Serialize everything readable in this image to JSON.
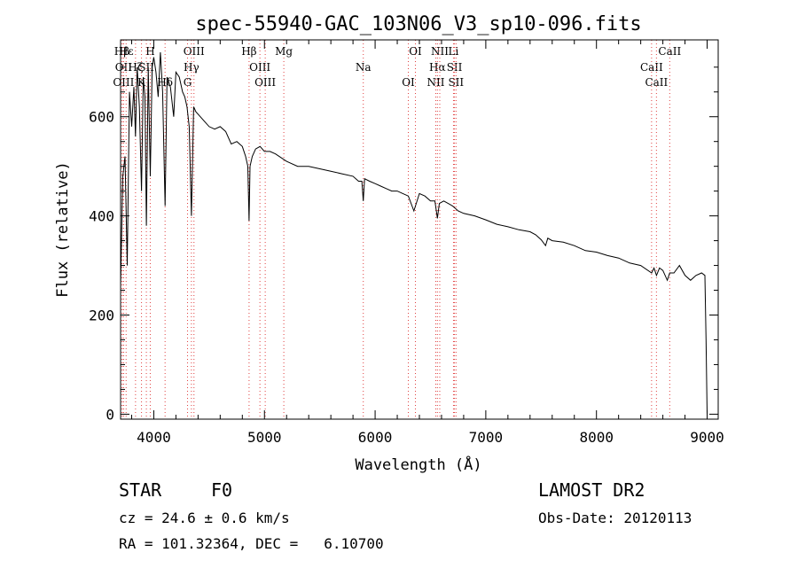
{
  "chart_data": {
    "type": "line",
    "title": "spec-55940-GAC_103N06_V3_sp10-096.fits",
    "xlabel": "Wavelength (Å)",
    "ylabel": "Flux (relative)",
    "xlim": [
      3700,
      9100
    ],
    "ylim": [
      -10,
      755
    ],
    "x_ticks": [
      4000,
      5000,
      6000,
      7000,
      8000,
      9000
    ],
    "y_ticks": [
      0,
      200,
      400,
      600
    ],
    "grid": false,
    "series": [
      {
        "x": [
          3700,
          3720,
          3740,
          3760,
          3780,
          3800,
          3820,
          3835,
          3850,
          3870,
          3889,
          3905,
          3920,
          3933,
          3950,
          3968,
          3985,
          4000,
          4020,
          4040,
          4060,
          4080,
          4102,
          4120,
          4150,
          4180,
          4200,
          4230,
          4260,
          4280,
          4300,
          4320,
          4340,
          4360,
          4380,
          4420,
          4460,
          4500,
          4550,
          4600,
          4650,
          4700,
          4750,
          4800,
          4830,
          4850,
          4861,
          4870,
          4890,
          4920,
          4960,
          5000,
          5050,
          5100,
          5200,
          5300,
          5400,
          5500,
          5600,
          5700,
          5800,
          5850,
          5880,
          5893,
          5905,
          5950,
          6000,
          6050,
          6100,
          6150,
          6200,
          6250,
          6300,
          6350,
          6400,
          6450,
          6500,
          6540,
          6563,
          6580,
          6620,
          6700,
          6750,
          6800,
          6900,
          7000,
          7100,
          7200,
          7300,
          7400,
          7450,
          7500,
          7540,
          7560,
          7600,
          7700,
          7800,
          7900,
          8000,
          8100,
          8200,
          8300,
          8400,
          8498,
          8520,
          8542,
          8570,
          8600,
          8640,
          8662,
          8700,
          8750,
          8800,
          8850,
          8900,
          8950,
          8980,
          8990,
          9000
        ],
        "values": [
          260,
          480,
          520,
          300,
          650,
          580,
          660,
          560,
          700,
          620,
          450,
          680,
          640,
          380,
          700,
          480,
          700,
          720,
          690,
          640,
          730,
          650,
          420,
          680,
          660,
          600,
          690,
          680,
          650,
          640,
          620,
          580,
          400,
          620,
          610,
          600,
          590,
          580,
          575,
          580,
          570,
          545,
          550,
          540,
          520,
          500,
          390,
          500,
          520,
          535,
          540,
          530,
          530,
          525,
          510,
          500,
          500,
          495,
          490,
          485,
          480,
          470,
          470,
          430,
          475,
          470,
          465,
          460,
          455,
          450,
          450,
          445,
          440,
          410,
          445,
          440,
          430,
          430,
          395,
          425,
          430,
          420,
          410,
          405,
          400,
          392,
          383,
          378,
          372,
          368,
          362,
          352,
          340,
          355,
          350,
          347,
          340,
          330,
          327,
          320,
          315,
          305,
          300,
          285,
          295,
          280,
          295,
          290,
          270,
          285,
          285,
          300,
          280,
          270,
          280,
          285,
          280,
          150,
          0
        ]
      }
    ],
    "line_annotations": [
      {
        "label": "Hβ",
        "x": 3712
      },
      {
        "label": "OII",
        "x": 3727
      },
      {
        "label": "OIII",
        "x": 3727
      },
      {
        "label": "Hε",
        "x": 3750
      },
      {
        "label": "Hζ",
        "x": 3835
      },
      {
        "label": "K",
        "x": 3889
      },
      {
        "label": "H",
        "x": 3968
      },
      {
        "label": "SII",
        "x": 3933
      },
      {
        "label": "Hδ",
        "x": 4102
      },
      {
        "label": "OIII",
        "x": 4363
      },
      {
        "label": "Hγ",
        "x": 4340
      },
      {
        "label": "G",
        "x": 4305
      },
      {
        "label": "Hβ",
        "x": 4861
      },
      {
        "label": "OIII",
        "x": 4959
      },
      {
        "label": "OIII",
        "x": 5007
      },
      {
        "label": "Mg",
        "x": 5175
      },
      {
        "label": "Na",
        "x": 5893
      },
      {
        "label": "OI",
        "x": 6300
      },
      {
        "label": "OI",
        "x": 6364
      },
      {
        "label": "Hα",
        "x": 6563
      },
      {
        "label": "NII",
        "x": 6548
      },
      {
        "label": "NII",
        "x": 6584
      },
      {
        "label": "SII",
        "x": 6717
      },
      {
        "label": "SII",
        "x": 6731
      },
      {
        "label": "Li",
        "x": 6708
      },
      {
        "label": "CaII",
        "x": 8498
      },
      {
        "label": "CaII",
        "x": 8542
      },
      {
        "label": "CaII",
        "x": 8662
      }
    ]
  },
  "info": {
    "class_label": "STAR",
    "subclass": "F0",
    "survey": "LAMOST DR2",
    "cz": "cz = 24.6 ± 0.6 km/s",
    "obs_date": "Obs-Date: 20120113",
    "radec": "RA = 101.32364, DEC =   6.10700"
  }
}
